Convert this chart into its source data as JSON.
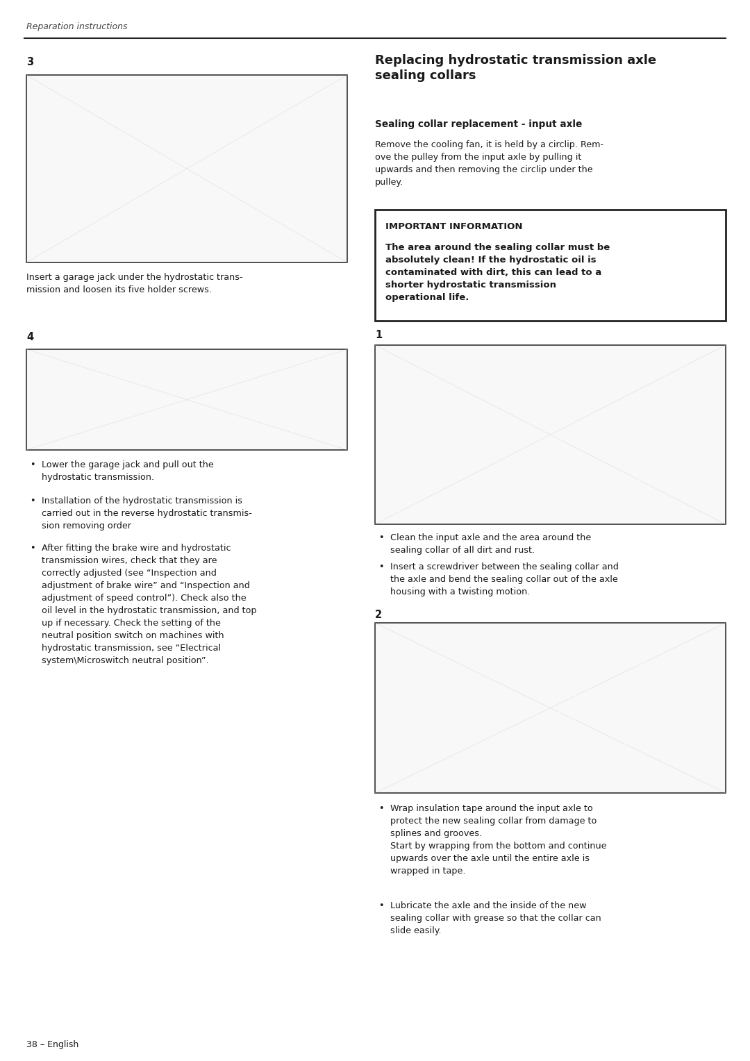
{
  "bg_color": "#ffffff",
  "page_width": 10.8,
  "page_height": 15.28,
  "header_text": "Reparation instructions",
  "footer_text": "38 – English",
  "left_col": {
    "section3_num": "3",
    "section3_caption": "Insert a garage jack under the hydrostatic trans-\nmission and loosen its five holder screws.",
    "section4_num": "4",
    "bullet4_1": "Lower the garage jack and pull out the\nhydrostatic transmission.",
    "bullet4_2": "Installation of the hydrostatic transmission is\ncarried out in the reverse hydrostatic transmis-\nsion removing order",
    "bullet4_3": "After fitting the brake wire and hydrostatic\ntransmission wires, check that they are\ncorrectly adjusted (see “Inspection and\nadjustment of brake wire” and “Inspection and\nadjustment of speed control”). Check also the\noil level in the hydrostatic transmission, and top\nup if necessary. Check the setting of the\nneutral position switch on machines with\nhydrostatic transmission, see “Electrical\nsystem\\Microswitch neutral position”."
  },
  "right_col": {
    "title": "Replacing hydrostatic transmission axle\nsealing collars",
    "subtitle": "Sealing collar replacement - input axle",
    "intro_text": "Remove the cooling fan, it is held by a circlip. Rem-\nove the pulley from the input axle by pulling it\nupwards and then removing the circlip under the\npulley.",
    "important_title": "IMPORTANT INFORMATION",
    "important_text": "The area around the sealing collar must be\nabsolutely clean! If the hydrostatic oil is\ncontaminated with dirt, this can lead to a\nshorter hydrostatic transmission\noperational life.",
    "section1_num": "1",
    "bullet1_1": "Clean the input axle and the area around the\nsealing collar of all dirt and rust.",
    "bullet1_2": "Insert a screwdriver between the sealing collar and\nthe axle and bend the sealing collar out of the axle\nhousing with a twisting motion.",
    "section2_num": "2",
    "bullet2_1": "Wrap insulation tape around the input axle to\nprotect the new sealing collar from damage to\nsplines and grooves.\nStart by wrapping from the bottom and continue\nupwards over the axle until the entire axle is\nwrapped in tape.",
    "bullet2_2": "Lubricate the axle and the inside of the new\nsealing collar with grease so that the collar can\nslide easily."
  },
  "colors": {
    "text": "#1a1a1a",
    "header_text": "#444444",
    "line": "#222222",
    "box_border": "#222222",
    "image_border": "#333333",
    "image_bg": "#f8f8f8"
  },
  "font_sizes": {
    "header": 9.0,
    "footer": 9.0,
    "title": 13.0,
    "subtitle": 9.8,
    "body": 9.2,
    "section_num": 10.5,
    "important_title": 9.5,
    "important_body": 9.5
  }
}
